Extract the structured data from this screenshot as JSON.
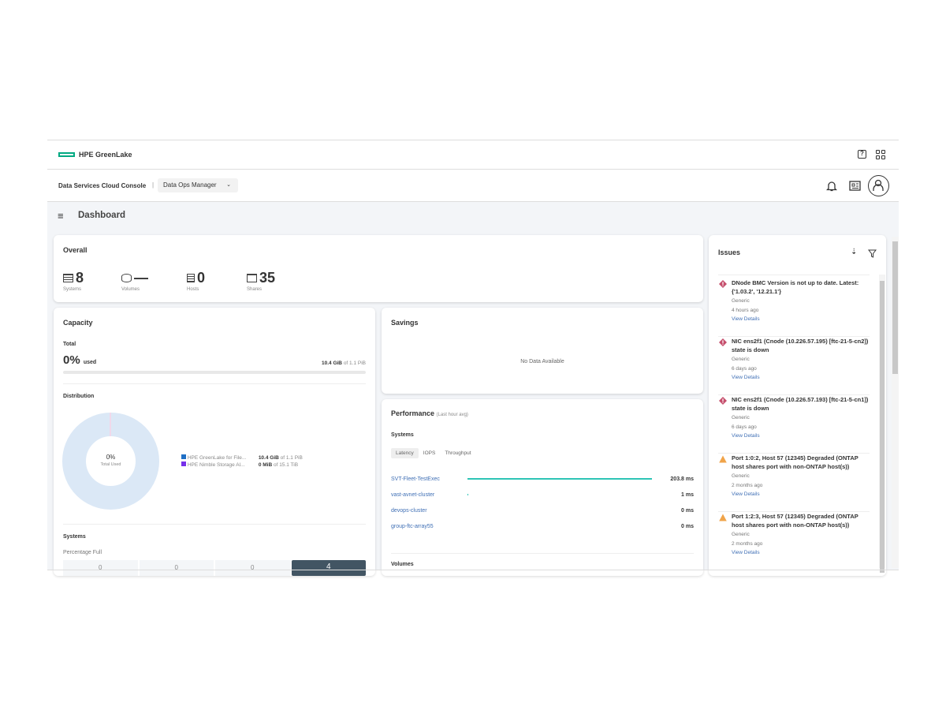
{
  "header": {
    "brand": "HPE GreenLake",
    "console": "Data Services Cloud Console",
    "app_selector": "Data Ops Manager",
    "brand_color": "#01a982"
  },
  "page": {
    "title": "Dashboard"
  },
  "overall": {
    "title": "Overall",
    "stats": [
      {
        "icon": "server-icon",
        "value": "8",
        "label": "Systems"
      },
      {
        "icon": "database-icon",
        "value": "—",
        "label": "Volumes"
      },
      {
        "icon": "host-icon",
        "value": "0",
        "label": "Hosts"
      },
      {
        "icon": "folder-icon",
        "value": "35",
        "label": "Shares"
      }
    ]
  },
  "capacity": {
    "title": "Capacity",
    "total_label": "Total",
    "used_pct": "0%",
    "used_word": "used",
    "used_amount": "10.4 GiB",
    "of_total": "of 1.1 PiB",
    "used_fraction": 0.0,
    "distribution_label": "Distribution",
    "donut_pct": "0%",
    "donut_label": "Total Used",
    "legend": [
      {
        "name": "HPE GreenLake for File...",
        "amount": "10.4 GiB",
        "of": "of 1.1 PiB",
        "color": "#1f6fc5"
      },
      {
        "name": "HPE Nimble Storage Al...",
        "amount": "0 MiB",
        "of": "of 15.1 TiB",
        "color": "#7630ea"
      }
    ],
    "systems_label": "Systems",
    "percentage_full_label": "Percentage Full",
    "bins": [
      "0",
      "0",
      "0",
      "4"
    ]
  },
  "savings": {
    "title": "Savings",
    "empty": "No Data Available"
  },
  "performance": {
    "title": "Performance",
    "subtitle": "(Last hour avg)",
    "systems_label": "Systems",
    "tabs": [
      "Latency",
      "IOPS",
      "Throughput"
    ],
    "active_tab": "Latency",
    "rows": [
      {
        "name": "SVT-Fleet-TestExec",
        "value": "203.8 ms",
        "ms": 203.8
      },
      {
        "name": "vast-avnet-cluster",
        "value": "1 ms",
        "ms": 1
      },
      {
        "name": "devops-cluster",
        "value": "0 ms",
        "ms": 0
      },
      {
        "name": "group-ftc-array55",
        "value": "0 ms",
        "ms": 0
      }
    ],
    "volumes_label": "Volumes"
  },
  "issues": {
    "title": "Issues",
    "items": [
      {
        "severity": "critical",
        "title": "DNode BMC Version is not up to date. Latest: {'1.03.2', '12.21.1'}",
        "category": "Generic",
        "time": "4 hours ago",
        "link": "View Details"
      },
      {
        "severity": "critical",
        "title": "NIC ens2f1 (Cnode (10.226.57.195) [ftc-21-5-cn2]) state is down",
        "category": "Generic",
        "time": "6 days ago",
        "link": "View Details"
      },
      {
        "severity": "critical",
        "title": "NIC ens2f1 (Cnode (10.226.57.193) [ftc-21-5-cn1]) state is down",
        "category": "Generic",
        "time": "6 days ago",
        "link": "View Details"
      },
      {
        "severity": "warning",
        "title": "Port 1:0:2, Host 57 (12345) Degraded (ONTAP host shares port with non-ONTAP host(s))",
        "category": "Generic",
        "time": "2 months ago",
        "link": "View Details"
      },
      {
        "severity": "warning",
        "title": "Port 1:2:3, Host 57 (12345) Degraded (ONTAP host shares port with non-ONTAP host(s))",
        "category": "Generic",
        "time": "2 months ago",
        "link": "View Details"
      }
    ]
  }
}
